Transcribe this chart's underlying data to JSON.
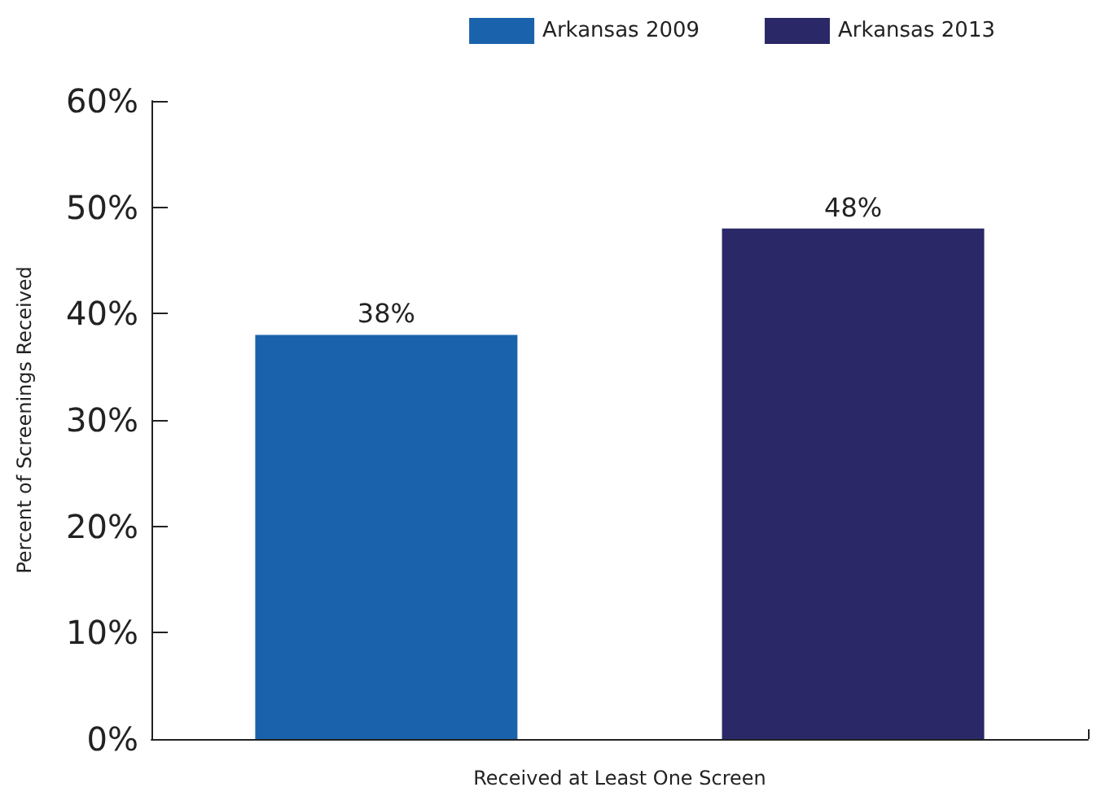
{
  "chart_data": {
    "type": "bar",
    "ylabel": "Percent of Screenings Received",
    "xlabel": "Received at Least One Screen",
    "categories": [
      null
    ],
    "series": [
      {
        "name": "Arkansas 2009",
        "color": "#1b62ad",
        "values": [
          38
        ],
        "value_labels": [
          "38%"
        ]
      },
      {
        "name": "Arkansas 2013",
        "color": "#2a2866",
        "values": [
          48
        ],
        "value_labels": [
          "48%"
        ]
      }
    ],
    "ylim": [
      0,
      60
    ],
    "yticks": [
      {
        "value": 0,
        "label": "0%"
      },
      {
        "value": 10,
        "label": "10%"
      },
      {
        "value": 20,
        "label": "20%"
      },
      {
        "value": 30,
        "label": "30%"
      },
      {
        "value": 40,
        "label": "40%"
      },
      {
        "value": 50,
        "label": "50%"
      },
      {
        "value": 60,
        "label": "60%"
      }
    ],
    "legend": "top right",
    "grid": false
  }
}
